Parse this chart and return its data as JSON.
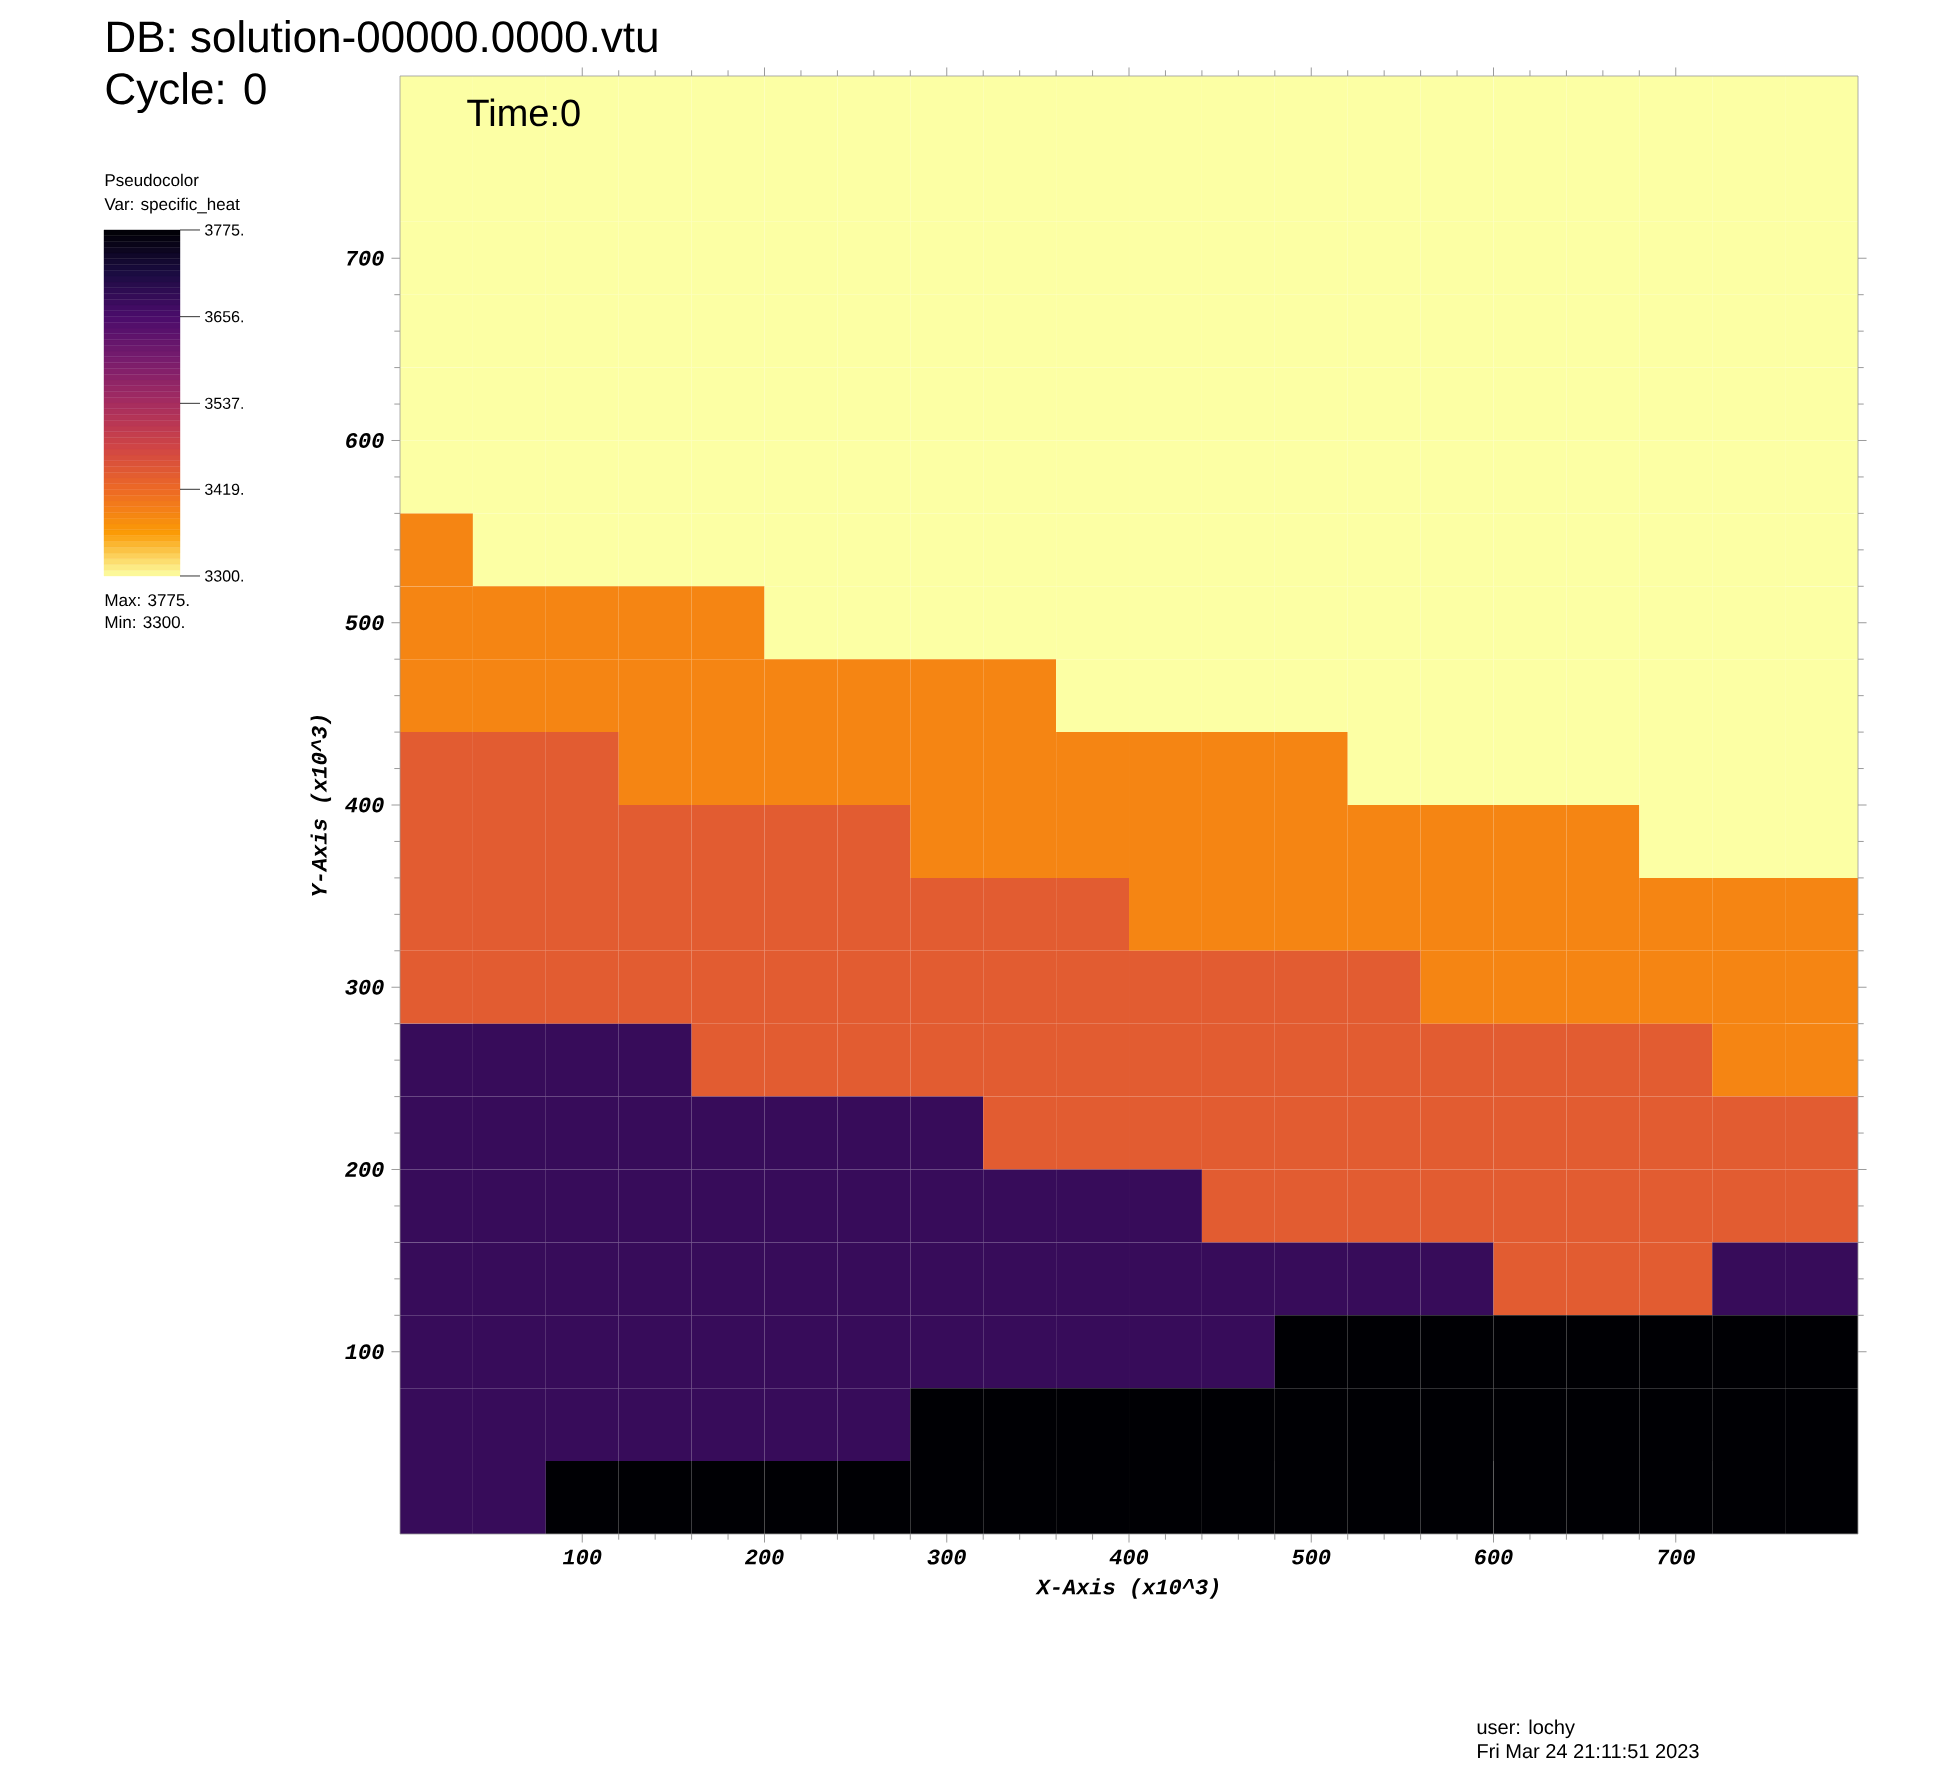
{
  "chart_data": {
    "type": "heatmap",
    "title": "DB: solution-00000.0000.vtu",
    "subtitle": "Cycle: 0",
    "xlabel": "X-Axis (x10^3)",
    "ylabel": "Y-Axis (x10^3)",
    "legend_title": "Pseudocolor",
    "clabel": "Var: specific_heat",
    "annotations": [
      "Time:0",
      "Max: 3775.",
      "Min: 3300.",
      "user: lochy",
      "Fri Mar 24 21:11:51 2023"
    ],
    "x": [
      20,
      60,
      100,
      140,
      180,
      220,
      260,
      300,
      340,
      380,
      420,
      460,
      500,
      540,
      580,
      620,
      660,
      700,
      740,
      780
    ],
    "y": [
      780,
      740,
      700,
      660,
      620,
      580,
      540,
      500,
      460,
      420,
      380,
      340,
      300,
      260,
      220,
      180,
      140,
      100,
      60,
      20
    ],
    "xlim": [
      0,
      800
    ],
    "ylim": [
      0,
      800
    ],
    "xticks": [
      100,
      200,
      300,
      400,
      500,
      600,
      700
    ],
    "yticks": [
      100,
      200,
      300,
      400,
      500,
      600,
      700
    ],
    "clim": [
      3300,
      3775
    ],
    "cticks": [
      {
        "value": 3300,
        "label": "3300."
      },
      {
        "value": 3419,
        "label": "3419."
      },
      {
        "value": 3537,
        "label": "3537."
      },
      {
        "value": 3656,
        "label": "3656."
      },
      {
        "value": 3775,
        "label": "3775."
      }
    ],
    "cells": [
      [
        3300,
        3300,
        3300,
        3300,
        3300,
        3300,
        3300,
        3300,
        3300,
        3300,
        3300,
        3300,
        3300,
        3300,
        3300,
        3300,
        3300,
        3300,
        3300,
        3300
      ],
      [
        3300,
        3300,
        3300,
        3300,
        3300,
        3300,
        3300,
        3300,
        3300,
        3300,
        3300,
        3300,
        3300,
        3300,
        3300,
        3300,
        3300,
        3300,
        3300,
        3300
      ],
      [
        3300,
        3300,
        3300,
        3300,
        3300,
        3300,
        3300,
        3300,
        3300,
        3300,
        3300,
        3300,
        3300,
        3300,
        3300,
        3300,
        3300,
        3300,
        3300,
        3300
      ],
      [
        3300,
        3300,
        3300,
        3300,
        3300,
        3300,
        3300,
        3300,
        3300,
        3300,
        3300,
        3300,
        3300,
        3300,
        3300,
        3300,
        3300,
        3300,
        3300,
        3300
      ],
      [
        3300,
        3300,
        3300,
        3300,
        3300,
        3300,
        3300,
        3300,
        3300,
        3300,
        3300,
        3300,
        3300,
        3300,
        3300,
        3300,
        3300,
        3300,
        3300,
        3300
      ],
      [
        3300,
        3300,
        3300,
        3300,
        3300,
        3300,
        3300,
        3300,
        3300,
        3300,
        3300,
        3300,
        3300,
        3300,
        3300,
        3300,
        3300,
        3300,
        3300,
        3300
      ],
      [
        3385,
        3300,
        3300,
        3300,
        3300,
        3300,
        3300,
        3300,
        3300,
        3300,
        3300,
        3300,
        3300,
        3300,
        3300,
        3300,
        3300,
        3300,
        3300,
        3300
      ],
      [
        3385,
        3385,
        3385,
        3385,
        3385,
        3300,
        3300,
        3300,
        3300,
        3300,
        3300,
        3300,
        3300,
        3300,
        3300,
        3300,
        3300,
        3300,
        3300,
        3300
      ],
      [
        3385,
        3385,
        3385,
        3385,
        3385,
        3385,
        3385,
        3385,
        3385,
        3300,
        3300,
        3300,
        3300,
        3300,
        3300,
        3300,
        3300,
        3300,
        3300,
        3300
      ],
      [
        3440,
        3440,
        3440,
        3385,
        3385,
        3385,
        3385,
        3385,
        3385,
        3385,
        3385,
        3385,
        3385,
        3300,
        3300,
        3300,
        3300,
        3300,
        3300,
        3300
      ],
      [
        3440,
        3440,
        3440,
        3440,
        3440,
        3440,
        3440,
        3385,
        3385,
        3385,
        3385,
        3385,
        3385,
        3385,
        3385,
        3385,
        3385,
        3300,
        3300,
        3300
      ],
      [
        3440,
        3440,
        3440,
        3440,
        3440,
        3440,
        3440,
        3440,
        3440,
        3440,
        3385,
        3385,
        3385,
        3385,
        3385,
        3385,
        3385,
        3385,
        3385,
        3385
      ],
      [
        3440,
        3440,
        3440,
        3440,
        3440,
        3440,
        3440,
        3440,
        3440,
        3440,
        3440,
        3440,
        3440,
        3440,
        3385,
        3385,
        3385,
        3385,
        3385,
        3385
      ],
      [
        3680,
        3680,
        3680,
        3680,
        3440,
        3440,
        3440,
        3440,
        3440,
        3440,
        3440,
        3440,
        3440,
        3440,
        3440,
        3440,
        3440,
        3440,
        3385,
        3385
      ],
      [
        3680,
        3680,
        3680,
        3680,
        3680,
        3680,
        3680,
        3680,
        3440,
        3440,
        3440,
        3440,
        3440,
        3440,
        3440,
        3440,
        3440,
        3440,
        3440,
        3440
      ],
      [
        3680,
        3680,
        3680,
        3680,
        3680,
        3680,
        3680,
        3680,
        3680,
        3680,
        3680,
        3440,
        3440,
        3440,
        3440,
        3440,
        3440,
        3440,
        3440,
        3440
      ],
      [
        3680,
        3680,
        3680,
        3680,
        3680,
        3680,
        3680,
        3680,
        3680,
        3680,
        3680,
        3680,
        3680,
        3680,
        3680,
        3440,
        3440,
        3440,
        3680,
        3680
      ],
      [
        3680,
        3680,
        3680,
        3680,
        3680,
        3680,
        3680,
        3680,
        3680,
        3680,
        3680,
        3680,
        3775,
        3775,
        3775,
        3775,
        3775,
        3775,
        3775,
        3775
      ],
      [
        3680,
        3680,
        3680,
        3680,
        3680,
        3680,
        3680,
        3775,
        3775,
        3775,
        3775,
        3775,
        3775,
        3775,
        3775,
        3775,
        3775,
        3775,
        3775,
        3775
      ],
      [
        3680,
        3680,
        3775,
        3775,
        3775,
        3775,
        3775,
        3775,
        3775,
        3775,
        3775,
        3775,
        3775,
        3775,
        3775,
        3775,
        3775,
        3775,
        3775,
        3775
      ]
    ]
  }
}
